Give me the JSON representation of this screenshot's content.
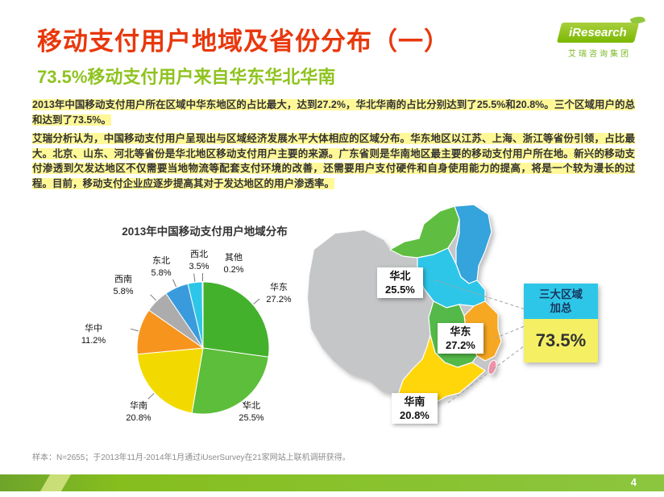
{
  "header": {
    "title": "移动支付用户地域及省份分布（一）",
    "subtitle": "73.5%移动支付用户来自华东华北华南",
    "logo": {
      "brand": "iResearch",
      "company": "艾瑞咨询集团"
    }
  },
  "paragraphs": {
    "p1": "2013年中国移动支付用户所在区域中华东地区的占比最大，达到27.2%，华北华南的占比分别达到了25.5%和20.8%。三个区域用户的总和达到了73.5%。",
    "p2": "艾瑞分析认为，中国移动支付用户呈现出与区域经济发展水平大体相应的区域分布。华东地区以江苏、上海、浙江等省份引领，占比最大。北京、山东、河北等省份是华北地区移动支付用户主要的来源。广东省则是华南地区最主要的移动支付用户所在地。新兴的移动支付渗透到欠发达地区不仅需要当地物流等配套支付环境的改善，还需要用户支付硬件和自身使用能力的提高，将是一个较为漫长的过程。目前，移动支付企业应逐步提高其对于发达地区的用户渗透率。"
  },
  "chart_data": {
    "type": "pie",
    "title": "2013年中国移动支付用户地域分布",
    "unit": "%",
    "start_angle_deg": 0,
    "direction": "clockwise",
    "slices": [
      {
        "key": "huadong",
        "name": "华东",
        "value": 27.2,
        "pct_label": "27.2%",
        "color": "#43b12c"
      },
      {
        "key": "huabei",
        "name": "华北",
        "value": 25.5,
        "pct_label": "25.5%",
        "color": "#5cbe3a"
      },
      {
        "key": "huanan",
        "name": "华南",
        "value": 20.8,
        "pct_label": "20.8%",
        "color": "#f2da00"
      },
      {
        "key": "huazhong",
        "name": "华中",
        "value": 11.2,
        "pct_label": "11.2%",
        "color": "#f7941e"
      },
      {
        "key": "xinan",
        "name": "西南",
        "value": 5.8,
        "pct_label": "5.8%",
        "color": "#acacac"
      },
      {
        "key": "dongbei",
        "name": "东北",
        "value": 5.8,
        "pct_label": "5.8%",
        "color": "#3a9bdc"
      },
      {
        "key": "xibei",
        "name": "西北",
        "value": 3.5,
        "pct_label": "3.5%",
        "color": "#2ec6e8"
      },
      {
        "key": "qita",
        "name": "其他",
        "value": 0.2,
        "pct_label": "0.2%",
        "color": "#20456b"
      }
    ]
  },
  "map": {
    "callouts": [
      {
        "name": "华北",
        "pct": "25.5%"
      },
      {
        "name": "华东",
        "pct": "27.2%"
      },
      {
        "name": "华南",
        "pct": "20.8%"
      }
    ],
    "aggregate": {
      "line1": "三大区域",
      "line2": "加总",
      "value": "73.5%"
    }
  },
  "footer": {
    "sample_note": "样本：N=2655；于2013年11月-2014年1月通过iUserSurvey在21家网站上联机调研获得。",
    "page_number": "4"
  },
  "colors": {
    "title_red": "#e8380d",
    "brand_green": "#8fc31f",
    "highlight_yellow": "#fff899",
    "aggregate_cyan": "#2ec6e8",
    "aggregate_yellow": "#f5f063",
    "footer_green": "#8cc63f"
  }
}
